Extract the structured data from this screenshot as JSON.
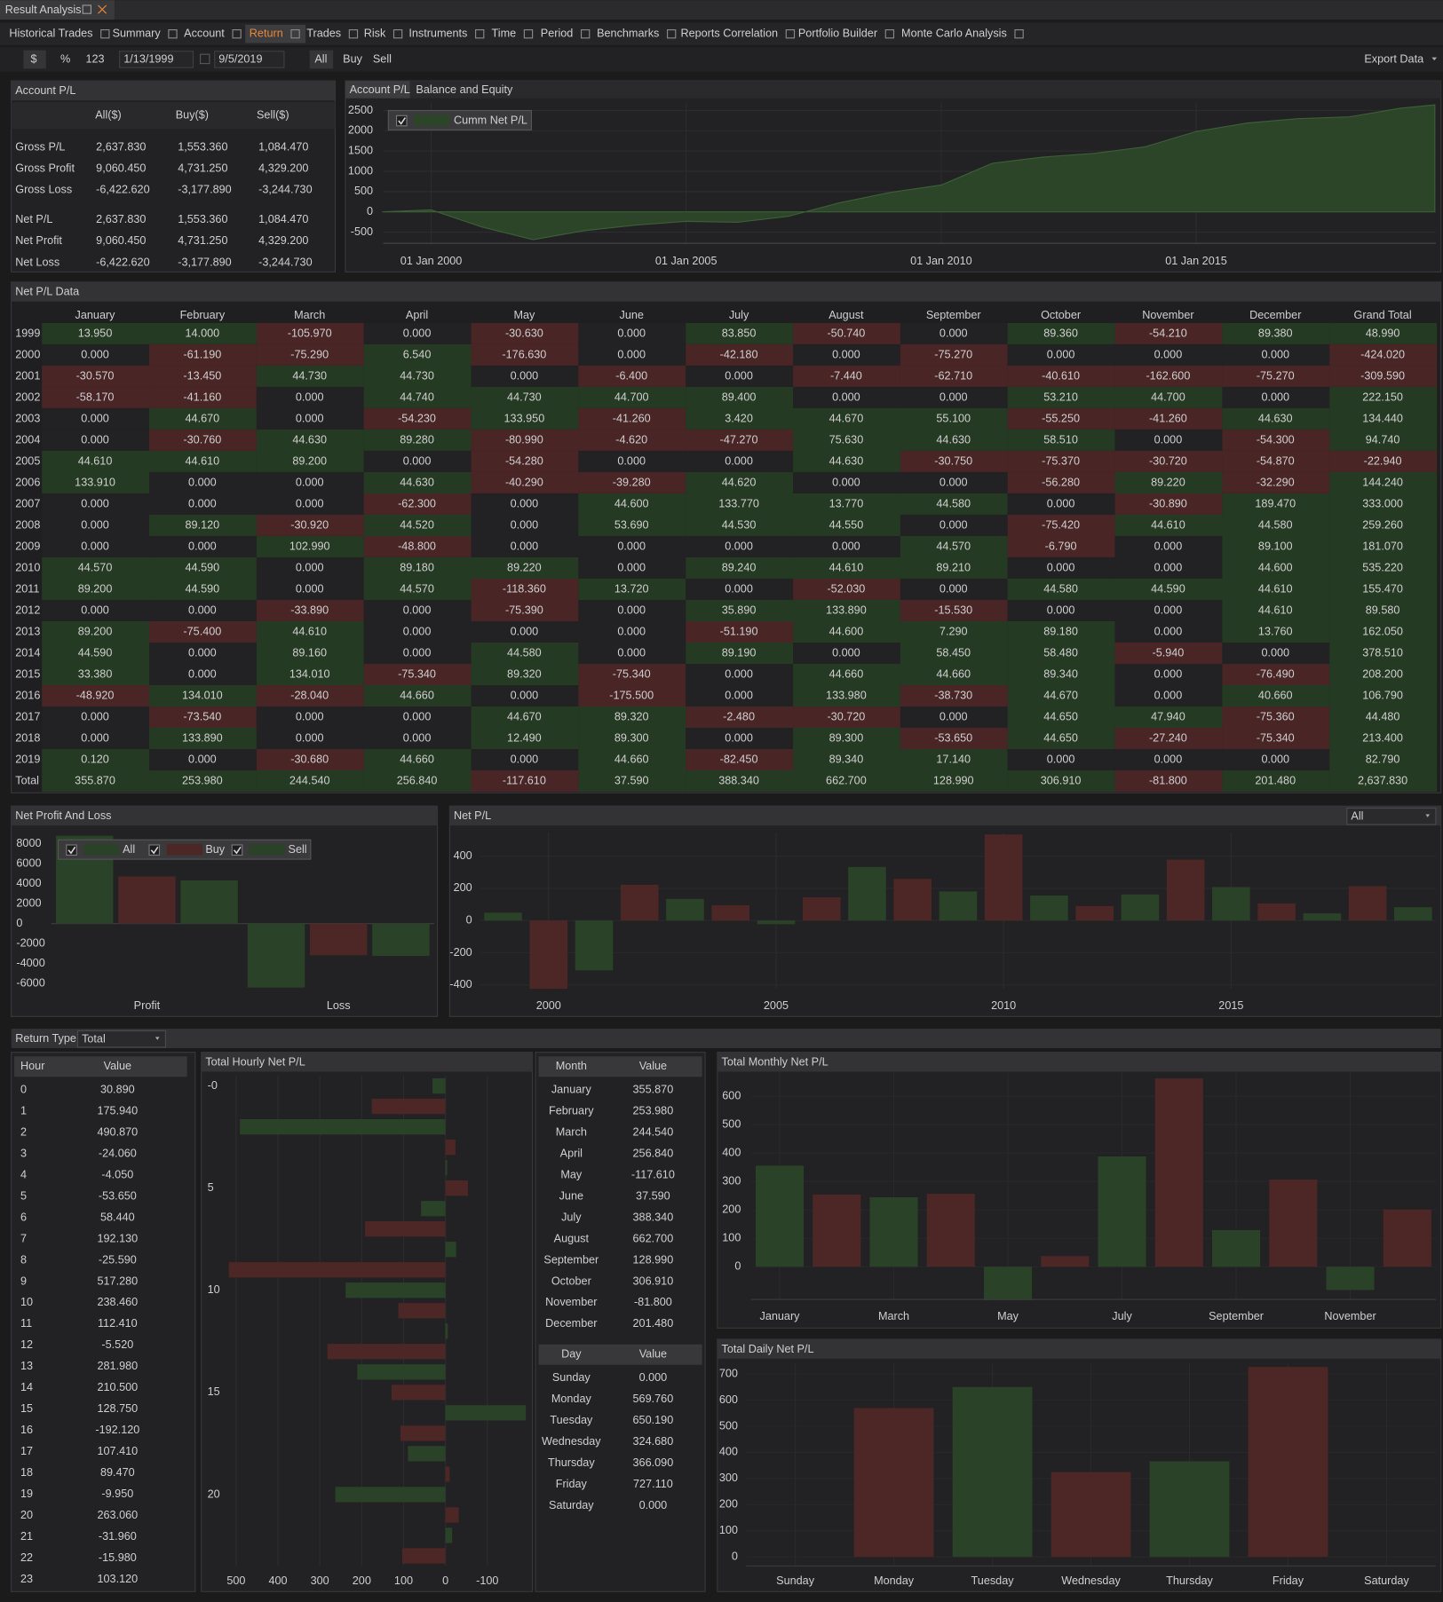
{
  "window_tab": "Result Analysis",
  "tabs": [
    "Historical Trades",
    "Summary",
    "Account",
    "Return",
    "Trades",
    "Risk",
    "Instruments",
    "Time",
    "Period",
    "Benchmarks",
    "Reports Correlation",
    "Portfolio Builder",
    "Monte Carlo Analysis"
  ],
  "active_tab": 3,
  "toolbar": {
    "units": [
      "$",
      "%",
      "123"
    ],
    "start_date": "1/13/1999",
    "end_date": "9/5/2019",
    "sides": [
      "All",
      "Buy",
      "Sell"
    ],
    "export": "Export Data"
  },
  "account_pl": {
    "title": "Account P/L",
    "columns": [
      "All($)",
      "Buy($)",
      "Sell($)"
    ],
    "rows": [
      [
        "Gross P/L",
        "2,637.830",
        "1,553.360",
        "1,084.470"
      ],
      [
        "Gross Profit",
        "9,060.450",
        "4,731.250",
        "4,329.200"
      ],
      [
        "Gross Loss",
        "-6,422.620",
        "-3,177.890",
        "-3,244.730"
      ],
      [
        "Net P/L",
        "2,637.830",
        "1,553.360",
        "1,084.470"
      ],
      [
        "Net Profit",
        "9,060.450",
        "4,731.250",
        "4,329.200"
      ],
      [
        "Net Loss",
        "-6,422.620",
        "-3,177.890",
        "-3,244.730"
      ]
    ]
  },
  "account_chart_tabs": [
    "Account P/L",
    "Balance and Equity"
  ],
  "net_pl_table": {
    "title": "Net P/L Data",
    "positive_color": "#253a23",
    "negative_color": "#4a2525",
    "zero_color": "#222224",
    "columns": [
      "January",
      "February",
      "March",
      "April",
      "May",
      "June",
      "July",
      "August",
      "September",
      "October",
      "November",
      "December",
      "Grand Total"
    ],
    "rows": [
      [
        "1999",
        "13.950",
        "14.000",
        "-105.970",
        "0.000",
        "-30.630",
        "0.000",
        "83.850",
        "-50.740",
        "0.000",
        "89.360",
        "-54.210",
        "89.380",
        "48.990"
      ],
      [
        "2000",
        "0.000",
        "-61.190",
        "-75.290",
        "6.540",
        "-176.630",
        "0.000",
        "-42.180",
        "0.000",
        "-75.270",
        "0.000",
        "0.000",
        "0.000",
        "-424.020"
      ],
      [
        "2001",
        "-30.570",
        "-13.450",
        "44.730",
        "44.730",
        "0.000",
        "-6.400",
        "0.000",
        "-7.440",
        "-62.710",
        "-40.610",
        "-162.600",
        "-75.270",
        "-309.590"
      ],
      [
        "2002",
        "-58.170",
        "-41.160",
        "0.000",
        "44.740",
        "44.730",
        "44.700",
        "89.400",
        "0.000",
        "0.000",
        "53.210",
        "44.700",
        "0.000",
        "222.150"
      ],
      [
        "2003",
        "0.000",
        "44.670",
        "0.000",
        "-54.230",
        "133.950",
        "-41.260",
        "3.420",
        "44.670",
        "55.100",
        "-55.250",
        "-41.260",
        "44.630",
        "134.440"
      ],
      [
        "2004",
        "0.000",
        "-30.760",
        "44.630",
        "89.280",
        "-80.990",
        "-4.620",
        "-47.270",
        "75.630",
        "44.630",
        "58.510",
        "0.000",
        "-54.300",
        "94.740"
      ],
      [
        "2005",
        "44.610",
        "44.610",
        "89.200",
        "0.000",
        "-54.280",
        "0.000",
        "0.000",
        "44.630",
        "-30.750",
        "-75.370",
        "-30.720",
        "-54.870",
        "-22.940"
      ],
      [
        "2006",
        "133.910",
        "0.000",
        "0.000",
        "44.630",
        "-40.290",
        "-39.280",
        "44.620",
        "0.000",
        "0.000",
        "-56.280",
        "89.220",
        "-32.290",
        "144.240"
      ],
      [
        "2007",
        "0.000",
        "0.000",
        "0.000",
        "-62.300",
        "0.000",
        "44.600",
        "133.770",
        "13.770",
        "44.580",
        "0.000",
        "-30.890",
        "189.470",
        "333.000"
      ],
      [
        "2008",
        "0.000",
        "89.120",
        "-30.920",
        "44.520",
        "0.000",
        "53.690",
        "44.530",
        "44.550",
        "0.000",
        "-75.420",
        "44.610",
        "44.580",
        "259.260"
      ],
      [
        "2009",
        "0.000",
        "0.000",
        "102.990",
        "-48.800",
        "0.000",
        "0.000",
        "0.000",
        "0.000",
        "44.570",
        "-6.790",
        "0.000",
        "89.100",
        "181.070"
      ],
      [
        "2010",
        "44.570",
        "44.590",
        "0.000",
        "89.180",
        "89.220",
        "0.000",
        "89.240",
        "44.610",
        "89.210",
        "0.000",
        "0.000",
        "44.600",
        "535.220"
      ],
      [
        "2011",
        "89.200",
        "44.590",
        "0.000",
        "44.570",
        "-118.360",
        "13.720",
        "0.000",
        "-52.030",
        "0.000",
        "44.580",
        "44.590",
        "44.610",
        "155.470"
      ],
      [
        "2012",
        "0.000",
        "0.000",
        "-33.890",
        "0.000",
        "-75.390",
        "0.000",
        "35.890",
        "133.890",
        "-15.530",
        "0.000",
        "0.000",
        "44.610",
        "89.580"
      ],
      [
        "2013",
        "89.200",
        "-75.400",
        "44.610",
        "0.000",
        "0.000",
        "0.000",
        "-51.190",
        "44.600",
        "7.290",
        "89.180",
        "0.000",
        "13.760",
        "162.050"
      ],
      [
        "2014",
        "44.590",
        "0.000",
        "89.160",
        "0.000",
        "44.580",
        "0.000",
        "89.190",
        "0.000",
        "58.450",
        "58.480",
        "-5.940",
        "0.000",
        "378.510"
      ],
      [
        "2015",
        "33.380",
        "0.000",
        "134.010",
        "-75.340",
        "89.320",
        "-75.340",
        "0.000",
        "44.660",
        "44.660",
        "89.340",
        "0.000",
        "-76.490",
        "208.200"
      ],
      [
        "2016",
        "-48.920",
        "134.010",
        "-28.040",
        "44.660",
        "0.000",
        "-175.500",
        "0.000",
        "133.980",
        "-38.730",
        "44.670",
        "0.000",
        "40.660",
        "106.790"
      ],
      [
        "2017",
        "0.000",
        "-73.540",
        "0.000",
        "0.000",
        "44.670",
        "89.320",
        "-2.480",
        "-30.720",
        "0.000",
        "44.650",
        "47.940",
        "-75.360",
        "44.480"
      ],
      [
        "2018",
        "0.000",
        "133.890",
        "0.000",
        "0.000",
        "12.490",
        "89.300",
        "0.000",
        "89.300",
        "-53.650",
        "44.650",
        "-27.240",
        "-75.340",
        "213.400"
      ],
      [
        "2019",
        "0.120",
        "0.000",
        "-30.680",
        "44.660",
        "0.000",
        "44.660",
        "-82.450",
        "89.340",
        "17.140",
        "0.000",
        "0.000",
        "0.000",
        "82.790"
      ],
      [
        "Total",
        "355.870",
        "253.980",
        "244.540",
        "256.840",
        "-117.610",
        "37.590",
        "388.340",
        "662.700",
        "128.990",
        "306.910",
        "-81.800",
        "201.480",
        "2,637.830"
      ]
    ]
  },
  "return_type": {
    "label": "Return Type",
    "value": "Total"
  },
  "hour_table": {
    "columns": [
      "Hour",
      "Value"
    ],
    "rows": [
      [
        "0",
        "30.890"
      ],
      [
        "1",
        "175.940"
      ],
      [
        "2",
        "490.870"
      ],
      [
        "3",
        "-24.060"
      ],
      [
        "4",
        "-4.050"
      ],
      [
        "5",
        "-53.650"
      ],
      [
        "6",
        "58.440"
      ],
      [
        "7",
        "192.130"
      ],
      [
        "8",
        "-25.590"
      ],
      [
        "9",
        "517.280"
      ],
      [
        "10",
        "238.460"
      ],
      [
        "11",
        "112.410"
      ],
      [
        "12",
        "-5.520"
      ],
      [
        "13",
        "281.980"
      ],
      [
        "14",
        "210.500"
      ],
      [
        "15",
        "128.750"
      ],
      [
        "16",
        "-192.120"
      ],
      [
        "17",
        "107.410"
      ],
      [
        "18",
        "89.470"
      ],
      [
        "19",
        "-9.950"
      ],
      [
        "20",
        "263.060"
      ],
      [
        "21",
        "-31.960"
      ],
      [
        "22",
        "-15.980"
      ],
      [
        "23",
        "103.120"
      ]
    ]
  },
  "month_table": {
    "columns": [
      "Month",
      "Value"
    ],
    "rows": [
      [
        "January",
        "355.870"
      ],
      [
        "February",
        "253.980"
      ],
      [
        "March",
        "244.540"
      ],
      [
        "April",
        "256.840"
      ],
      [
        "May",
        "-117.610"
      ],
      [
        "June",
        "37.590"
      ],
      [
        "July",
        "388.340"
      ],
      [
        "August",
        "662.700"
      ],
      [
        "September",
        "128.990"
      ],
      [
        "October",
        "306.910"
      ],
      [
        "November",
        "-81.800"
      ],
      [
        "December",
        "201.480"
      ]
    ]
  },
  "day_table": {
    "columns": [
      "Day",
      "Value"
    ],
    "rows": [
      [
        "Sunday",
        "0.000"
      ],
      [
        "Monday",
        "569.760"
      ],
      [
        "Tuesday",
        "650.190"
      ],
      [
        "Wednesday",
        "324.680"
      ],
      [
        "Thursday",
        "366.090"
      ],
      [
        "Friday",
        "727.110"
      ],
      [
        "Saturday",
        "0.000"
      ]
    ]
  },
  "chart_data": [
    {
      "type": "area",
      "x": [
        1999.04,
        2000,
        2001,
        2002,
        2003,
        2004,
        2005,
        2006,
        2007,
        2008,
        2009,
        2010,
        2011,
        2012,
        2013,
        2014,
        2015,
        2016,
        2017,
        2018,
        2019,
        2019.68
      ],
      "series": [
        {
          "name": "Cumm Net P/L",
          "color": "#2c4529",
          "values": [
            0,
            49,
            -375,
            -685,
            -463,
            -328,
            -233,
            -256,
            -112,
            221,
            480,
            661,
            1196,
            1352,
            1441,
            1603,
            1982,
            2190,
            2297,
            2341,
            2555,
            2638
          ]
        }
      ],
      "xlim": [
        1999.06,
        2019.7
      ],
      "xticks": [
        {
          "value": 2000,
          "label": "01 Jan 2000"
        },
        {
          "value": 2005,
          "label": "01 Jan 2005"
        },
        {
          "value": 2010,
          "label": "01 Jan 2010"
        },
        {
          "value": 2015,
          "label": "01 Jan 2015"
        }
      ],
      "ylim": [
        -775,
        2700
      ],
      "yticks": [
        2500,
        2000,
        1500,
        1000,
        500,
        0,
        -500
      ],
      "grid": true
    },
    {
      "type": "grouped_bar",
      "title": "Net Profit And Loss",
      "categories": [
        "Profit",
        "Loss"
      ],
      "series": [
        {
          "name": "All",
          "color": "#2a4228",
          "values": [
            9060.45,
            -6422.62
          ]
        },
        {
          "name": "Buy",
          "color": "#4d2626",
          "values": [
            4731.25,
            -3177.89
          ]
        },
        {
          "name": "Sell",
          "color": "#2a4228",
          "values": [
            4329.2,
            -3244.73
          ]
        }
      ],
      "ylim": [
        -6560,
        8820
      ],
      "yticks": [
        8000,
        6000,
        4000,
        2000,
        0,
        -2000,
        -4000,
        -6000
      ]
    },
    {
      "type": "bar",
      "title": "Net P/L",
      "selector": "All",
      "x": [
        1999,
        2000,
        2001,
        2002,
        2003,
        2004,
        2005,
        2006,
        2007,
        2008,
        2009,
        2010,
        2011,
        2012,
        2013,
        2014,
        2015,
        2016,
        2017,
        2018,
        2019
      ],
      "values": [
        48.99,
        -424.02,
        -309.59,
        222.15,
        134.44,
        94.74,
        -22.94,
        144.24,
        333,
        259.26,
        181.07,
        535.22,
        155.47,
        89.58,
        162.05,
        378.51,
        208.2,
        106.79,
        44.48,
        213.4,
        82.79
      ],
      "colors": [
        "#2a4228",
        "#4d2626"
      ],
      "xlim": [
        1998.5,
        2019.5
      ],
      "xticks": [
        2000,
        2005,
        2010,
        2015
      ],
      "ylim": [
        -425,
        546
      ],
      "yticks": [
        400,
        200,
        0,
        -200,
        -400
      ],
      "grid": true
    },
    {
      "type": "hbar",
      "title": "Total Hourly Net P/L",
      "y": [
        0,
        1,
        2,
        3,
        4,
        5,
        6,
        7,
        8,
        9,
        10,
        11,
        12,
        13,
        14,
        15,
        16,
        17,
        18,
        19,
        20,
        21,
        22,
        23
      ],
      "values": [
        30.89,
        175.94,
        490.87,
        -24.06,
        -4.05,
        -53.65,
        58.44,
        192.13,
        -25.59,
        517.28,
        238.46,
        112.41,
        -5.52,
        281.98,
        210.5,
        128.75,
        -192.12,
        107.41,
        89.47,
        -9.95,
        263.06,
        -31.96,
        -15.98,
        103.12
      ],
      "colors": [
        "#2a4228",
        "#4d2626"
      ],
      "xlim": [
        522,
        -198
      ],
      "xticks": [
        500,
        400,
        300,
        200,
        100,
        0,
        -100
      ],
      "ylim": [
        -0.5,
        23.5
      ],
      "yticks": [
        {
          "value": 0,
          "label": "-0"
        },
        5,
        10,
        15,
        20
      ],
      "grid": true
    },
    {
      "type": "bar",
      "title": "Total Monthly Net P/L",
      "categories": [
        "January",
        null,
        "March",
        null,
        "May",
        null,
        "July",
        null,
        "September",
        null,
        "November",
        null
      ],
      "values": [
        355.87,
        253.98,
        244.54,
        256.84,
        -117.61,
        37.59,
        388.34,
        662.7,
        128.99,
        306.91,
        -81.8,
        201.48
      ],
      "colors": [
        "#2a4228",
        "#4d2626"
      ],
      "ylim": [
        -115,
        683
      ],
      "yticks": [
        600,
        500,
        400,
        300,
        200,
        100,
        0
      ],
      "grid": true
    },
    {
      "type": "bar",
      "title": "Total Daily Net P/L",
      "categories": [
        "Sunday",
        "Monday",
        "Tuesday",
        "Wednesday",
        "Thursday",
        "Friday",
        "Saturday"
      ],
      "values": [
        0,
        569.76,
        650.19,
        324.68,
        366.09,
        727.11,
        0
      ],
      "colors": [
        "#2a4228",
        "#4d2626"
      ],
      "ylim": [
        -35,
        739
      ],
      "yticks": [
        700,
        600,
        500,
        400,
        300,
        200,
        100,
        0
      ],
      "grid": true
    }
  ]
}
